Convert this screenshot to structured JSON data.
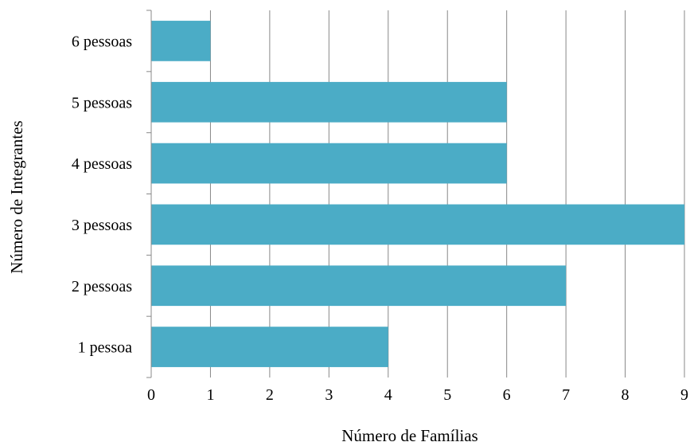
{
  "chart_data": {
    "type": "bar",
    "orientation": "horizontal",
    "title": "",
    "xlabel": "Número de Famílias",
    "ylabel": "Número de Integrantes",
    "categories": [
      "1 pessoa",
      "2 pessoas",
      "3 pessoas",
      "4 pessoas",
      "5 pessoas",
      "6 pessoas"
    ],
    "values": [
      4,
      7,
      9,
      6,
      6,
      1
    ],
    "xlim": [
      0,
      9
    ],
    "xticks": [
      "0",
      "1",
      "2",
      "3",
      "4",
      "5",
      "6",
      "7",
      "8",
      "9"
    ],
    "grid": "vertical",
    "legend": "none",
    "colors": {
      "bar": "#4bacc6",
      "grid": "#888888",
      "axis": "#888888"
    }
  }
}
